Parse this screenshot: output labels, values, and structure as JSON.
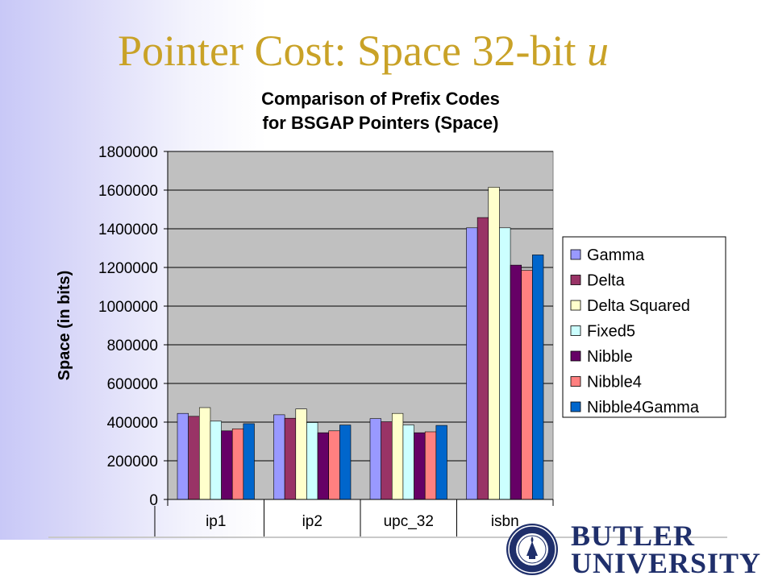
{
  "slide": {
    "title_text": "Pointer Cost: Space 32-bit ",
    "title_var": "u"
  },
  "chart_data": {
    "type": "bar",
    "title": [
      "Comparison of Prefix Codes",
      "for BSGAP Pointers (Space)"
    ],
    "ylabel": "Space (in bits)",
    "xlabel": "",
    "categories": [
      "ip1",
      "ip2",
      "upc_32",
      "isbn"
    ],
    "ylim": [
      0,
      1800000
    ],
    "yticks": [
      0,
      200000,
      400000,
      600000,
      800000,
      1000000,
      1200000,
      1400000,
      1600000,
      1800000
    ],
    "grid": true,
    "plot_background": "#c0c0c0",
    "legend_position": "right",
    "series": [
      {
        "name": "Gamma",
        "color": "#9999ff",
        "values": [
          445000,
          438000,
          418000,
          1405000
        ]
      },
      {
        "name": "Delta",
        "color": "#993366",
        "values": [
          430000,
          420000,
          402000,
          1458000
        ]
      },
      {
        "name": "Delta Squared",
        "color": "#ffffcc",
        "values": [
          475000,
          468000,
          445000,
          1615000
        ]
      },
      {
        "name": "Fixed5",
        "color": "#ccffff",
        "values": [
          405000,
          398000,
          385000,
          1405000
        ]
      },
      {
        "name": "Nibble",
        "color": "#660066",
        "values": [
          355000,
          345000,
          345000,
          1212000
        ]
      },
      {
        "name": "Nibble4",
        "color": "#ff8080",
        "values": [
          365000,
          355000,
          350000,
          1185000
        ]
      },
      {
        "name": "Nibble4Gamma",
        "color": "#0066cc",
        "values": [
          392000,
          385000,
          383000,
          1265000
        ]
      }
    ]
  },
  "footer": {
    "logo_line1": "BUTLER",
    "logo_line2": "UNIVERSITY",
    "seal_text": "BUTLER UNIVERSITY INDIANAPOLIS"
  }
}
